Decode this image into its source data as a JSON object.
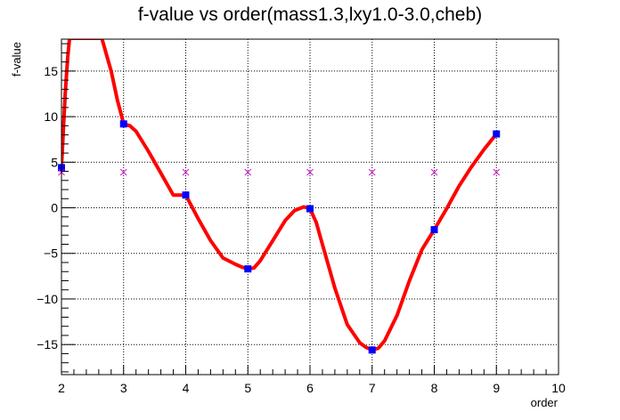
{
  "chart_data": {
    "type": "line",
    "title": "f-value vs order(mass1.3,lxy1.0-3.0,cheb)",
    "xlabel": "order",
    "ylabel": "f-value",
    "xlim": [
      2,
      10
    ],
    "ylim": [
      -18.3,
      18.5
    ],
    "xticks": [
      2,
      3,
      4,
      5,
      6,
      7,
      8,
      9,
      10
    ],
    "yticks": [
      -15,
      -10,
      -5,
      0,
      5,
      10,
      15
    ],
    "xtick_labels": [
      "2",
      "3",
      "4",
      "5",
      "6",
      "7",
      "8",
      "9",
      "10"
    ],
    "ytick_labels": [
      "−15",
      "−10",
      "−5",
      "0",
      "5",
      "10",
      "15"
    ],
    "grid": true,
    "series": [
      {
        "kind": "markers",
        "marker": "square",
        "color": "#0000ff",
        "x": [
          2,
          3,
          4,
          5,
          6,
          7,
          8,
          9
        ],
        "y": [
          4.4,
          9.2,
          1.4,
          -6.7,
          -0.1,
          -15.6,
          -2.4,
          8.1
        ]
      },
      {
        "kind": "markers",
        "marker": "x",
        "color": "#cc00cc",
        "x": [
          2,
          3,
          4,
          5,
          6,
          7,
          8,
          9
        ],
        "y": [
          3.9,
          3.9,
          3.9,
          3.9,
          3.9,
          3.9,
          3.9,
          3.9
        ]
      },
      {
        "kind": "curve",
        "color": "#ff0000",
        "x": [
          2.0,
          2.03,
          2.06,
          2.1,
          2.13,
          2.65,
          2.8,
          2.9,
          2.97,
          3.0,
          3.1,
          3.2,
          3.4,
          3.6,
          3.8,
          4.0,
          4.2,
          4.4,
          4.6,
          4.8,
          4.9,
          5.0,
          5.1,
          5.2,
          5.4,
          5.6,
          5.75,
          5.9,
          6.0,
          6.1,
          6.2,
          6.4,
          6.6,
          6.8,
          6.9,
          7.0,
          7.1,
          7.2,
          7.4,
          7.6,
          7.8,
          8.0,
          8.2,
          8.4,
          8.6,
          8.8,
          9.0
        ],
        "y": [
          4.4,
          8.5,
          12.5,
          16.5,
          18.6,
          18.6,
          15.0,
          11.8,
          10.0,
          9.2,
          9.0,
          8.4,
          6.2,
          3.8,
          1.4,
          1.4,
          -1.2,
          -3.6,
          -5.5,
          -6.2,
          -6.5,
          -6.7,
          -6.6,
          -5.8,
          -3.6,
          -1.4,
          -0.3,
          0.1,
          -0.1,
          -1.6,
          -4.0,
          -8.8,
          -12.8,
          -14.8,
          -15.3,
          -15.6,
          -15.4,
          -14.6,
          -11.8,
          -8.0,
          -4.6,
          -2.4,
          -0.1,
          2.4,
          4.5,
          6.4,
          8.1
        ]
      }
    ]
  }
}
